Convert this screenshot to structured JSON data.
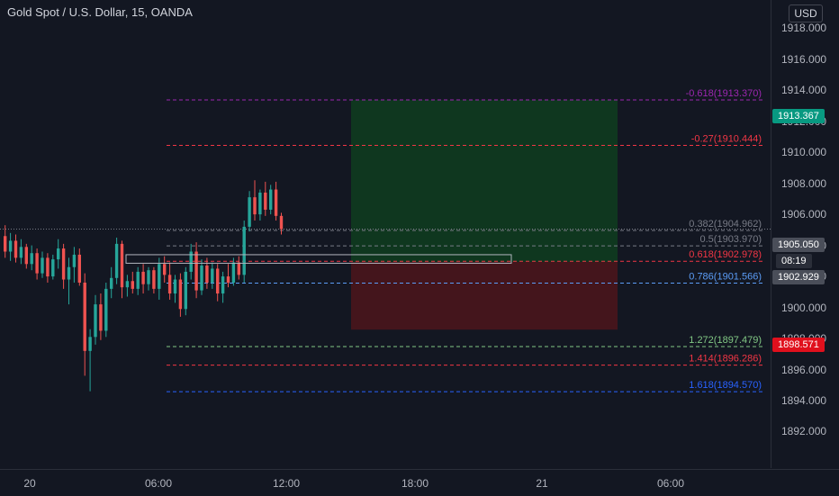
{
  "header": {
    "symbol_title": "Gold Spot / U.S. Dollar, 15, OANDA",
    "currency_button": "USD"
  },
  "y_axis": {
    "ticks": [
      "1918.000",
      "1916.000",
      "1914.000",
      "1912.000",
      "1910.000",
      "1908.000",
      "1906.000",
      "1904.000",
      "1902.000",
      "1900.000",
      "1898.000",
      "1896.000",
      "1894.000",
      "1892.000"
    ]
  },
  "x_axis": {
    "ticks": [
      "20",
      "06:00",
      "12:00",
      "18:00",
      "21",
      "06:00"
    ]
  },
  "price_labels": {
    "take_profit": "1913.367",
    "current_price": "1905.050",
    "countdown": "08:19",
    "entry": "1902.929",
    "stop_loss": "1898.571"
  },
  "fib_levels": [
    {
      "label": "-0.618(1913.370)",
      "price": 1913.37,
      "color": "#9c27b0"
    },
    {
      "label": "-0.27(1910.444)",
      "price": 1910.444,
      "color": "#f23645"
    },
    {
      "label": "0.382(1904.962)",
      "price": 1904.962,
      "color": "#787b86"
    },
    {
      "label": "0.5(1903.970)",
      "price": 1903.97,
      "color": "#787b86"
    },
    {
      "label": "0.618(1902.978)",
      "price": 1902.978,
      "color": "#f23645"
    },
    {
      "label": "0.786(1901.566)",
      "price": 1901.566,
      "color": "#5b9cf6"
    },
    {
      "label": "1.272(1897.479)",
      "price": 1897.479,
      "color": "#81c784"
    },
    {
      "label": "1.414(1896.286)",
      "price": 1896.286,
      "color": "#f23645"
    },
    {
      "label": "1.618(1894.570)",
      "price": 1894.57,
      "color": "#2962ff"
    }
  ],
  "position": {
    "take_profit": 1913.367,
    "entry": 1902.929,
    "stop_loss": 1898.571
  },
  "colors": {
    "up": "#26a69a",
    "down": "#ef5350",
    "background": "#131722",
    "profit_zone": "#0f3b1f",
    "loss_zone": "#4a151c"
  },
  "chart_data": {
    "type": "candlestick",
    "y_range": [
      1891,
      1919.5
    ],
    "bars": [
      {
        "o": 1904.6,
        "h": 1905.3,
        "l": 1903.2,
        "c": 1903.6
      },
      {
        "o": 1903.6,
        "h": 1904.8,
        "l": 1903.0,
        "c": 1904.3
      },
      {
        "o": 1904.3,
        "h": 1904.7,
        "l": 1902.9,
        "c": 1903.2
      },
      {
        "o": 1903.2,
        "h": 1904.4,
        "l": 1902.8,
        "c": 1903.9
      },
      {
        "o": 1903.9,
        "h": 1904.1,
        "l": 1902.5,
        "c": 1902.8
      },
      {
        "o": 1902.8,
        "h": 1904.0,
        "l": 1902.4,
        "c": 1903.5
      },
      {
        "o": 1903.5,
        "h": 1903.8,
        "l": 1901.8,
        "c": 1902.2
      },
      {
        "o": 1902.2,
        "h": 1903.6,
        "l": 1901.9,
        "c": 1903.2
      },
      {
        "o": 1903.2,
        "h": 1903.5,
        "l": 1901.6,
        "c": 1902.0
      },
      {
        "o": 1902.0,
        "h": 1903.4,
        "l": 1901.8,
        "c": 1903.1
      },
      {
        "o": 1903.1,
        "h": 1904.4,
        "l": 1902.5,
        "c": 1903.8
      },
      {
        "o": 1903.8,
        "h": 1904.1,
        "l": 1901.2,
        "c": 1901.8
      },
      {
        "o": 1901.8,
        "h": 1903.2,
        "l": 1900.2,
        "c": 1902.6
      },
      {
        "o": 1902.6,
        "h": 1903.9,
        "l": 1901.6,
        "c": 1903.4
      },
      {
        "o": 1903.4,
        "h": 1903.8,
        "l": 1901.4,
        "c": 1901.6
      },
      {
        "o": 1901.6,
        "h": 1902.2,
        "l": 1895.6,
        "c": 1897.2
      },
      {
        "o": 1897.2,
        "h": 1898.6,
        "l": 1894.6,
        "c": 1898.1
      },
      {
        "o": 1898.1,
        "h": 1900.8,
        "l": 1897.6,
        "c": 1900.2
      },
      {
        "o": 1900.2,
        "h": 1900.9,
        "l": 1897.9,
        "c": 1898.5
      },
      {
        "o": 1898.5,
        "h": 1901.6,
        "l": 1898.1,
        "c": 1901.2
      },
      {
        "o": 1901.2,
        "h": 1902.6,
        "l": 1900.6,
        "c": 1901.9
      },
      {
        "o": 1901.9,
        "h": 1904.5,
        "l": 1901.5,
        "c": 1904.1
      },
      {
        "o": 1904.1,
        "h": 1904.3,
        "l": 1900.6,
        "c": 1901.3
      },
      {
        "o": 1901.3,
        "h": 1902.1,
        "l": 1900.7,
        "c": 1901.7
      },
      {
        "o": 1901.7,
        "h": 1902.3,
        "l": 1900.9,
        "c": 1901.2
      },
      {
        "o": 1901.2,
        "h": 1902.6,
        "l": 1900.8,
        "c": 1902.3
      },
      {
        "o": 1902.3,
        "h": 1902.8,
        "l": 1900.9,
        "c": 1901.5
      },
      {
        "o": 1901.5,
        "h": 1902.6,
        "l": 1901.1,
        "c": 1902.4
      },
      {
        "o": 1902.4,
        "h": 1902.6,
        "l": 1900.9,
        "c": 1901.2
      },
      {
        "o": 1901.2,
        "h": 1903.2,
        "l": 1900.5,
        "c": 1902.8
      },
      {
        "o": 1902.8,
        "h": 1903.3,
        "l": 1901.6,
        "c": 1902.1
      },
      {
        "o": 1902.1,
        "h": 1902.9,
        "l": 1900.5,
        "c": 1900.9
      },
      {
        "o": 1900.9,
        "h": 1902.1,
        "l": 1900.3,
        "c": 1901.8
      },
      {
        "o": 1901.8,
        "h": 1902.2,
        "l": 1899.4,
        "c": 1899.9
      },
      {
        "o": 1899.9,
        "h": 1902.6,
        "l": 1899.5,
        "c": 1902.3
      },
      {
        "o": 1902.3,
        "h": 1904.1,
        "l": 1901.8,
        "c": 1903.6
      },
      {
        "o": 1903.6,
        "h": 1904.2,
        "l": 1900.6,
        "c": 1901.1
      },
      {
        "o": 1901.1,
        "h": 1903.1,
        "l": 1900.8,
        "c": 1902.7
      },
      {
        "o": 1902.7,
        "h": 1903.2,
        "l": 1901.2,
        "c": 1901.6
      },
      {
        "o": 1901.6,
        "h": 1902.9,
        "l": 1901.2,
        "c": 1902.5
      },
      {
        "o": 1902.5,
        "h": 1902.8,
        "l": 1900.4,
        "c": 1900.9
      },
      {
        "o": 1900.9,
        "h": 1902.3,
        "l": 1900.3,
        "c": 1902.0
      },
      {
        "o": 1902.0,
        "h": 1902.8,
        "l": 1901.3,
        "c": 1901.6
      },
      {
        "o": 1901.6,
        "h": 1903.2,
        "l": 1901.4,
        "c": 1902.9
      },
      {
        "o": 1902.9,
        "h": 1903.3,
        "l": 1901.8,
        "c": 1902.1
      },
      {
        "o": 1902.1,
        "h": 1905.6,
        "l": 1901.6,
        "c": 1905.2
      },
      {
        "o": 1905.2,
        "h": 1907.5,
        "l": 1904.9,
        "c": 1907.1
      },
      {
        "o": 1907.1,
        "h": 1908.2,
        "l": 1905.6,
        "c": 1906.0
      },
      {
        "o": 1906.0,
        "h": 1907.6,
        "l": 1905.6,
        "c": 1907.4
      },
      {
        "o": 1907.4,
        "h": 1908.1,
        "l": 1905.9,
        "c": 1906.3
      },
      {
        "o": 1906.3,
        "h": 1907.9,
        "l": 1906.0,
        "c": 1907.6
      },
      {
        "o": 1907.6,
        "h": 1908.1,
        "l": 1905.6,
        "c": 1905.9
      },
      {
        "o": 1905.9,
        "h": 1906.1,
        "l": 1904.7,
        "c": 1905.05
      }
    ]
  }
}
